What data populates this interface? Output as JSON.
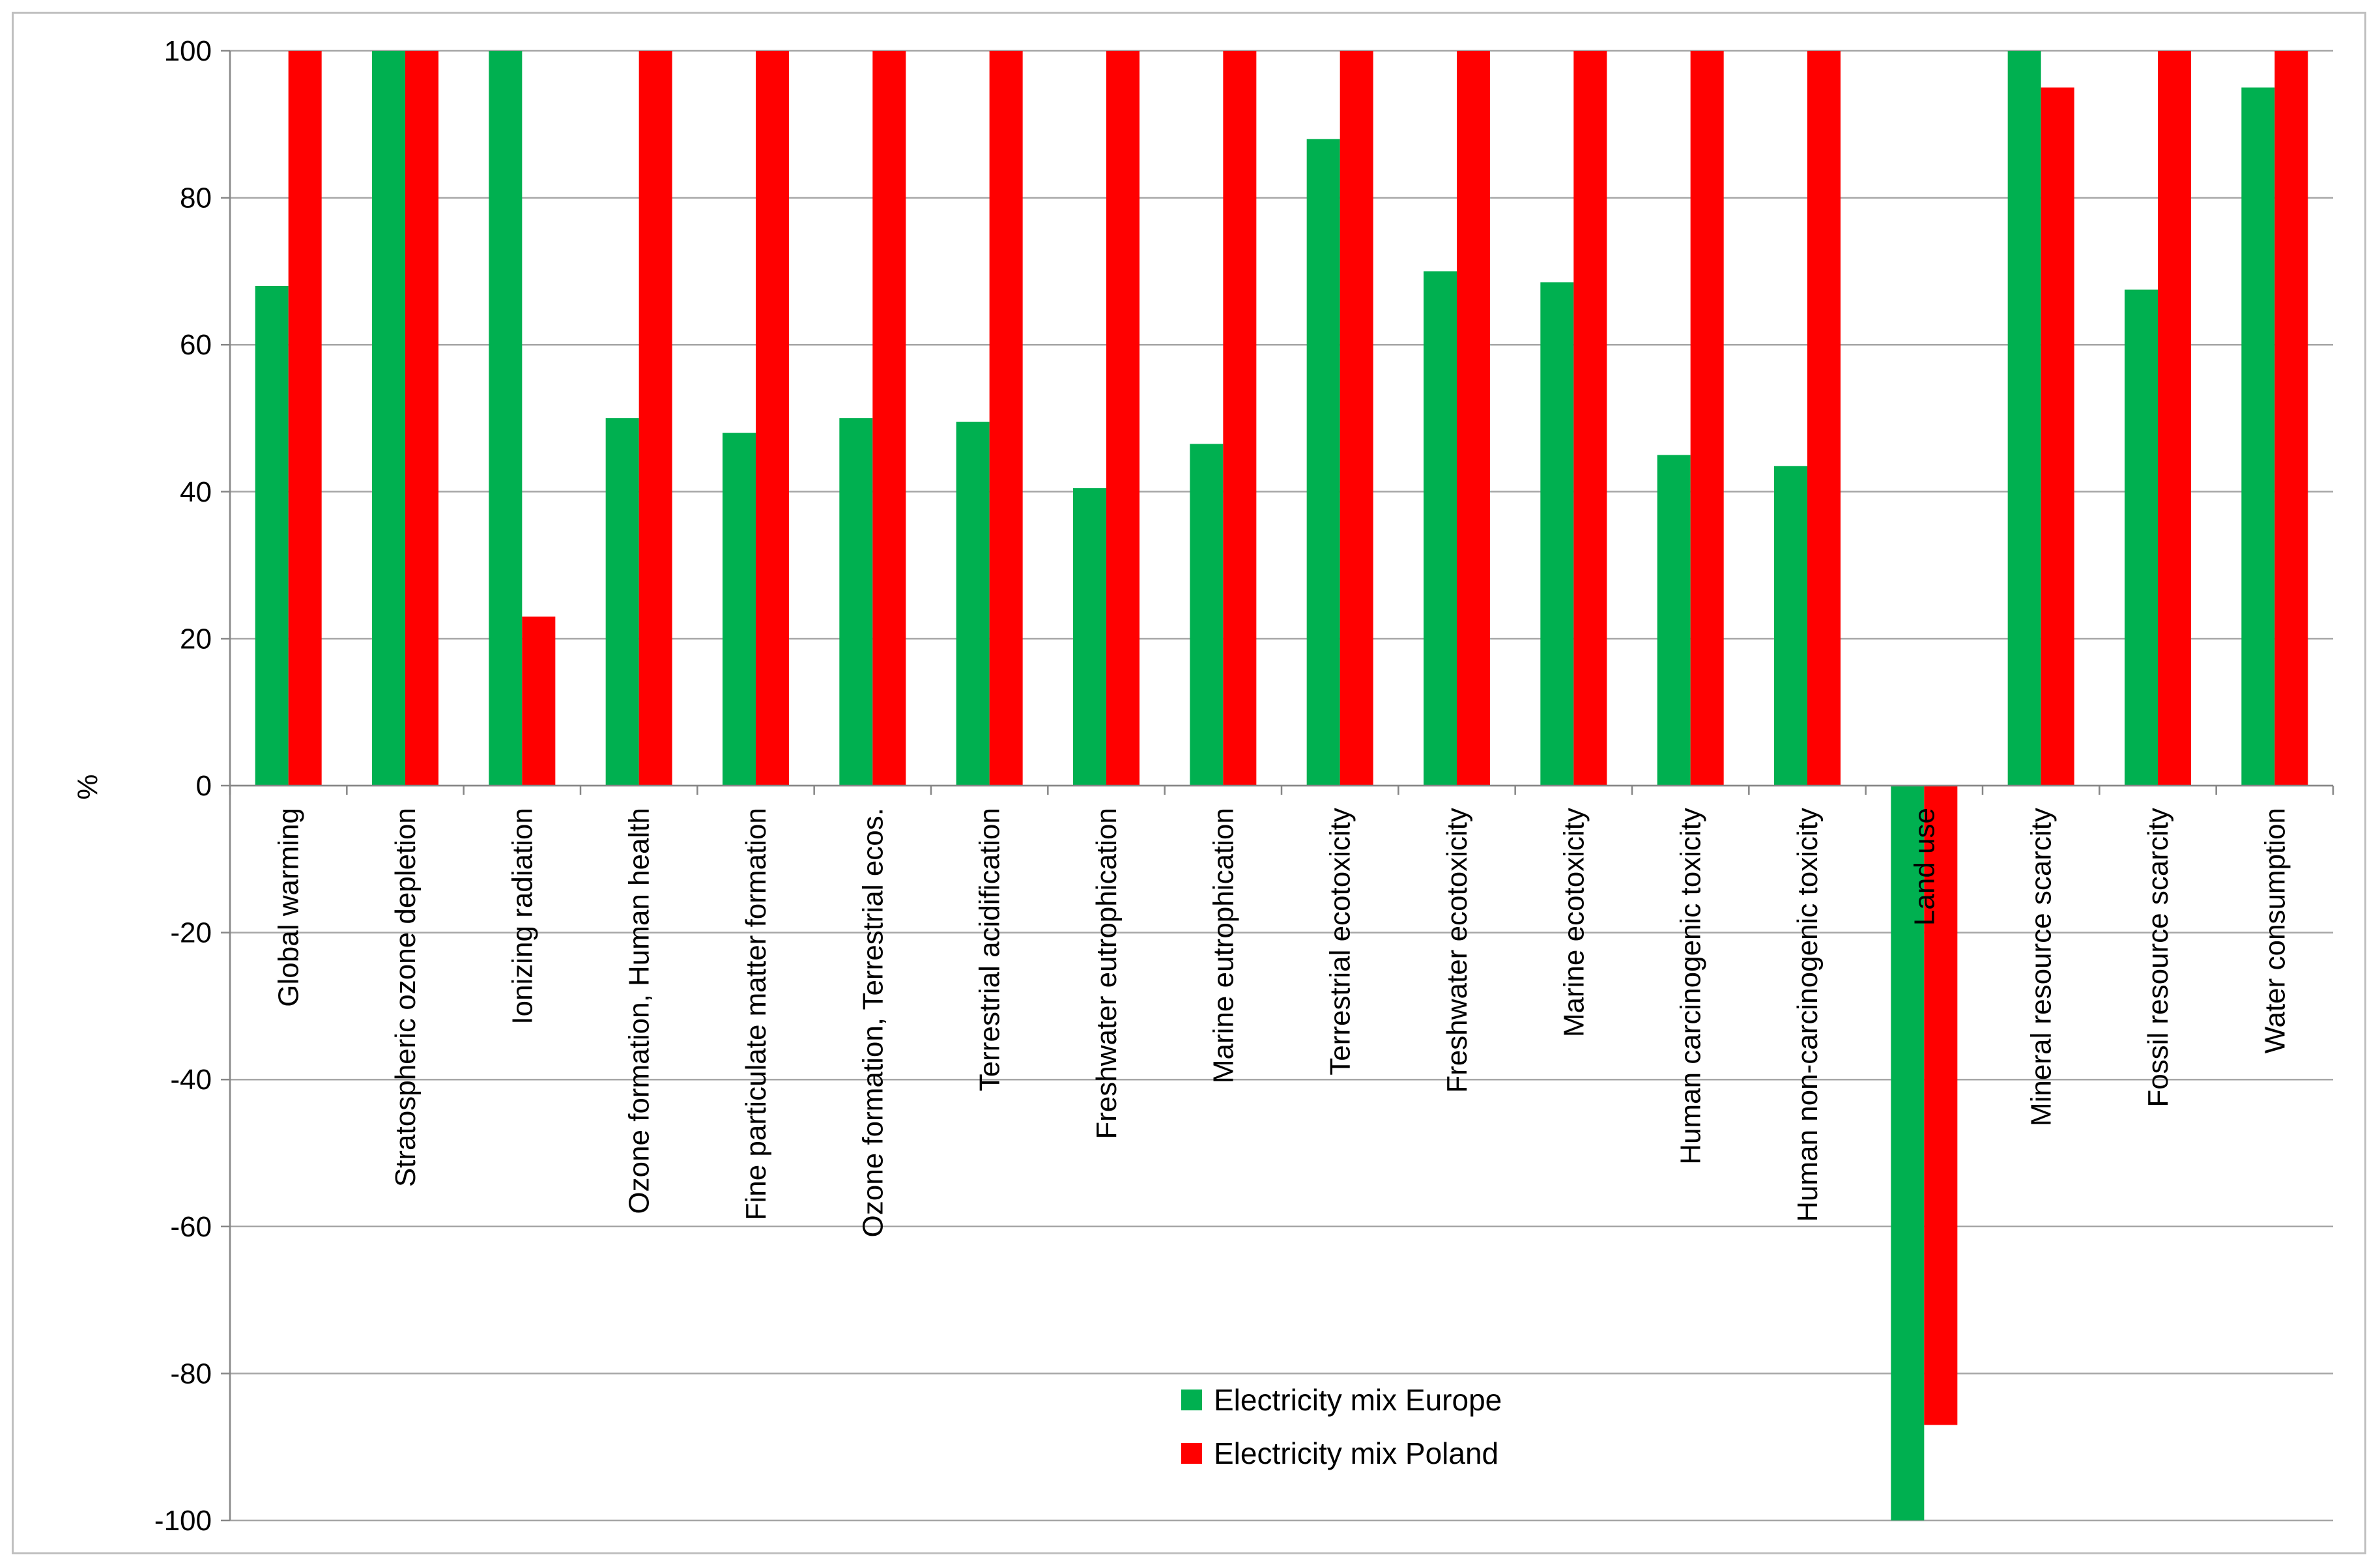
{
  "chart_data": {
    "type": "bar",
    "title": "",
    "xlabel": "",
    "ylabel": "%",
    "ylim": [
      -100,
      100
    ],
    "yticks": [
      100,
      80,
      60,
      40,
      20,
      0,
      -20,
      -40,
      -60,
      -80,
      -100
    ],
    "grid": true,
    "legend_position": "bottom-center",
    "categories": [
      "Global warming",
      "Stratospheric ozone depletion",
      "Ionizing radiation",
      "Ozone formation, Human health",
      "Fine particulate matter formation",
      "Ozone formation, Terrestrial ecos.",
      "Terrestrial acidification",
      "Freshwater eutrophication",
      "Marine eutrophication",
      "Terrestrial ecotoxicity",
      "Freshwater ecotoxicity",
      "Marine ecotoxicity",
      "Human carcinogenic toxicity",
      "Human non-carcinogenic toxicity",
      "Land use",
      "Mineral resource scarcity",
      "Fossil resource scarcity",
      "Water consumption"
    ],
    "series": [
      {
        "name": "Electricity mix Europe",
        "color": "#00b050",
        "values": [
          68,
          100,
          100,
          50,
          48,
          50,
          49.5,
          40.5,
          46.5,
          88,
          70,
          68.5,
          45,
          43.5,
          -100,
          100,
          67.5,
          95
        ]
      },
      {
        "name": "Electricity mix Poland",
        "color": "#ff0000",
        "values": [
          100,
          100,
          23,
          100,
          100,
          100,
          100,
          100,
          100,
          100,
          100,
          100,
          100,
          100,
          -87,
          95,
          100,
          100
        ]
      }
    ]
  }
}
